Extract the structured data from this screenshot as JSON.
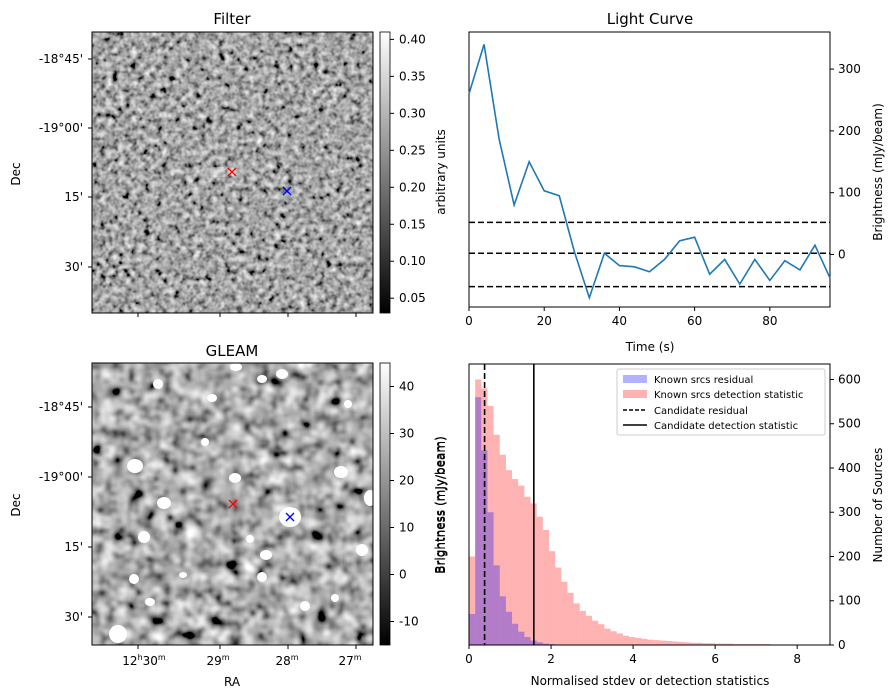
{
  "chart_data": [
    {
      "type": "heatmap",
      "title": "Filter",
      "ylabel": "Dec",
      "ytick_labels": [
        "-18°45'",
        "-19°00'",
        "15'",
        "30'"
      ],
      "colorbar": {
        "label": "arbitrary units",
        "range": [
          0.03,
          0.41
        ],
        "ticks": [
          0.4,
          0.35,
          0.3,
          0.25,
          0.2,
          0.15,
          0.1,
          0.05
        ]
      },
      "colormap": "gray",
      "markers": [
        {
          "symbol": "x",
          "color": "#ff0000"
        },
        {
          "symbol": "x",
          "color": "#0000ff"
        }
      ]
    },
    {
      "type": "line",
      "title": "Light Curve",
      "xlabel": "Time (s)",
      "ylabel": "Brightness (mJy/beam)",
      "ylabel_side": "right",
      "xlim": [
        0,
        96
      ],
      "ylim": [
        -85,
        360
      ],
      "xticks": [
        0,
        20,
        40,
        60,
        80
      ],
      "yticks": [
        300,
        200,
        100,
        0
      ],
      "series": [
        {
          "color": "#1f77b4",
          "x": [
            0,
            4,
            8,
            12,
            16,
            20,
            24,
            28,
            32,
            36,
            40,
            44,
            48,
            52,
            56,
            60,
            64,
            68,
            72,
            76,
            80,
            84,
            88,
            92,
            96
          ],
          "values": [
            260,
            340,
            187,
            80,
            150,
            103,
            95,
            5,
            -70,
            2,
            -18,
            -20,
            -28,
            -8,
            22,
            28,
            -32,
            -8,
            -48,
            -8,
            -42,
            -10,
            -25,
            15,
            -38
          ]
        }
      ],
      "hlines": [
        {
          "y": 52,
          "style": "dashed",
          "color": "#000000"
        },
        {
          "y": 2,
          "style": "dashed",
          "color": "#000000"
        },
        {
          "y": -52,
          "style": "dashed",
          "color": "#000000"
        }
      ]
    },
    {
      "type": "heatmap",
      "title": "GLEAM",
      "xlabel": "RA",
      "ylabel": "Dec",
      "xtick_labels": [
        {
          "h": "12",
          "hsup": "h",
          "m": "30",
          "msup": "m"
        },
        {
          "m": "29",
          "msup": "m"
        },
        {
          "m": "28",
          "msup": "m"
        },
        {
          "m": "27",
          "msup": "m"
        }
      ],
      "ytick_labels": [
        "-18°45'",
        "-19°00'",
        "15'",
        "30'"
      ],
      "colorbar": {
        "label": "Brightness (mJy/beam)",
        "range": [
          -15,
          45
        ],
        "ticks": [
          40,
          30,
          20,
          10,
          0,
          -10
        ]
      },
      "colormap": "gray",
      "markers": [
        {
          "symbol": "x",
          "color": "#ff0000"
        },
        {
          "symbol": "x",
          "color": "#0000ff"
        }
      ]
    },
    {
      "type": "bar",
      "subtype": "histogram",
      "xlabel": "Normalised stdev or detection statistics",
      "ylabel_left": "Brightness (mJy/beam)",
      "ylabel_right": "Number of Sources",
      "xlim": [
        0,
        8.8
      ],
      "ylim": [
        0,
        635
      ],
      "xticks": [
        0,
        2,
        4,
        6,
        8
      ],
      "yticks": [
        600,
        500,
        400,
        300,
        200,
        100,
        0
      ],
      "bin_width": 0.15,
      "series": [
        {
          "name": "Known srcs residual",
          "color": "#0000ff",
          "bins_start": 0.0,
          "values": [
            70,
            560,
            440,
            300,
            180,
            110,
            75,
            48,
            30,
            18,
            10,
            6,
            3,
            2
          ]
        },
        {
          "name": "Known srcs detection statistic",
          "color": "#ff0000",
          "bins_start": 0.0,
          "values": [
            200,
            600,
            580,
            540,
            475,
            430,
            395,
            375,
            360,
            335,
            320,
            290,
            260,
            212,
            175,
            143,
            118,
            94,
            77,
            66,
            55,
            47,
            37,
            31,
            26,
            21,
            18,
            16,
            14,
            12,
            11,
            10,
            9,
            8,
            7,
            6,
            5,
            5,
            4,
            4,
            3,
            3,
            3,
            2,
            2,
            2,
            2,
            2,
            2,
            1,
            1,
            1,
            1,
            1,
            1,
            1,
            1,
            1
          ]
        }
      ],
      "vlines": [
        {
          "name": "Candidate residual",
          "x": 0.38,
          "style": "dashed",
          "color": "#000000"
        },
        {
          "name": "Candidate detection statistic",
          "x": 1.58,
          "style": "solid",
          "color": "#000000"
        }
      ],
      "legend_position": "top-right"
    }
  ]
}
